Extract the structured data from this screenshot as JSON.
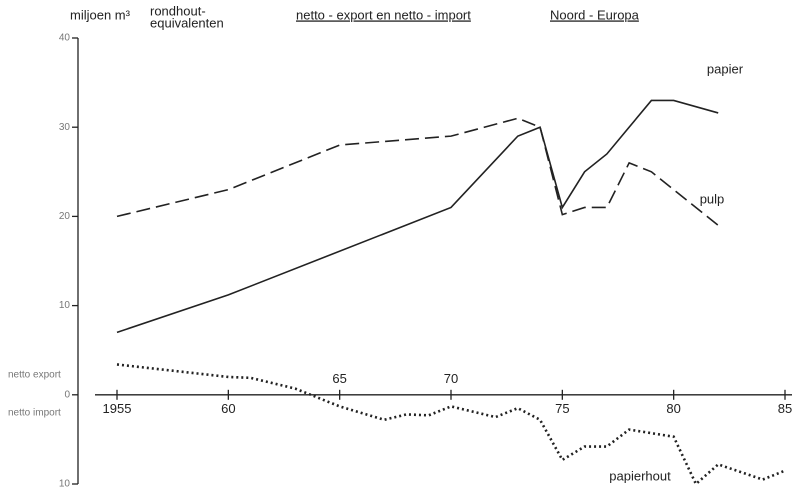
{
  "chart_data": {
    "type": "line",
    "title": "netto - export en netto - import",
    "subtitle": "Noord - Europa",
    "y_label": "miljoen m³",
    "y_label_2": "rondhout-",
    "y_label_3": "equivalenten",
    "export_label": "netto export",
    "import_label": "netto import",
    "xlim": [
      1953,
      1986
    ],
    "ylim": [
      -10,
      40
    ],
    "xticks": [
      1955,
      {
        "value": 1960,
        "label": "60"
      },
      {
        "value": 1965,
        "label": "65"
      },
      {
        "value": 1970,
        "label": "70"
      },
      {
        "value": 1975,
        "label": "75"
      },
      {
        "value": 1980,
        "label": "80"
      },
      {
        "value": 1985,
        "label": "85"
      }
    ],
    "yticks": [
      {
        "value": -10,
        "label": "10"
      },
      0,
      10,
      20,
      30,
      40
    ],
    "series": [
      {
        "name": "papier",
        "color": "#222",
        "dash": "solid",
        "x": [
          1955,
          1960,
          1970,
          1973,
          1974,
          1975,
          1976,
          1977,
          1979,
          1980,
          1982
        ],
        "values": [
          7,
          11.2,
          21,
          29,
          30,
          21,
          25,
          27,
          33,
          33,
          31.6
        ]
      },
      {
        "name": "pulp",
        "color": "#222",
        "dash": "dashed",
        "x": [
          1955,
          1960,
          1965,
          1970,
          1973,
          1974,
          1975,
          1976,
          1977,
          1978,
          1979,
          1982
        ],
        "values": [
          20,
          23,
          28,
          29,
          31,
          30,
          20.2,
          21,
          21,
          26,
          25,
          19
        ]
      },
      {
        "name": "papierhout",
        "color": "#222",
        "dash": "dotted",
        "x": [
          1955,
          1960,
          1961,
          1963,
          1965,
          1967,
          1968,
          1969,
          1970,
          1972,
          1973,
          1974,
          1975,
          1976,
          1977,
          1978,
          1980,
          1981,
          1982,
          1984,
          1985
        ],
        "values": [
          3.4,
          2,
          1.9,
          0.7,
          -1.3,
          -2.8,
          -2.2,
          -2.3,
          -1.3,
          -2.5,
          -1.5,
          -2.8,
          -7.3,
          -5.8,
          -5.8,
          -3.9,
          -4.7,
          -10,
          -7.8,
          -9.5,
          -8.5
        ]
      }
    ]
  }
}
